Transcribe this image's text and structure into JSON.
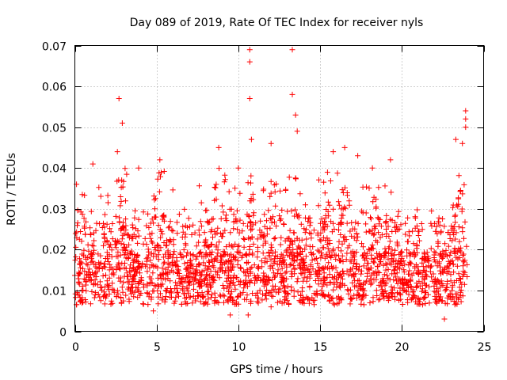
{
  "chart_data": {
    "type": "scatter",
    "title": "Day 089 of 2019, Rate Of TEC Index for receiver nyls",
    "xlabel": "GPS time / hours",
    "ylabel": "ROTI / TECUs",
    "xlim": [
      0,
      25
    ],
    "ylim": [
      0,
      0.07
    ],
    "x_ticks": [
      0,
      5,
      10,
      15,
      20,
      25
    ],
    "x_tick_labels": [
      "0",
      "5",
      "10",
      "15",
      "20",
      "25"
    ],
    "y_ticks": [
      0,
      0.01,
      0.02,
      0.03,
      0.04,
      0.05,
      0.06,
      0.07
    ],
    "y_tick_labels": [
      "0",
      "0.01",
      "0.02",
      "0.03",
      "0.04",
      "0.05",
      "0.06",
      "0.07"
    ],
    "grid": true,
    "marker": "plus",
    "marker_color": "#ff0000",
    "series": [
      {
        "name": "ROTI",
        "x_range": [
          0,
          24
        ],
        "typical_range": [
          0.005,
          0.03
        ],
        "sample_points": [
          [
            0.1,
            0.036
          ],
          [
            1.1,
            0.041
          ],
          [
            2.6,
            0.044
          ],
          [
            2.7,
            0.057
          ],
          [
            2.9,
            0.051
          ],
          [
            3.9,
            0.04
          ],
          [
            5.2,
            0.042
          ],
          [
            8.8,
            0.045
          ],
          [
            10.0,
            0.04
          ],
          [
            10.7,
            0.069
          ],
          [
            10.7,
            0.066
          ],
          [
            10.7,
            0.057
          ],
          [
            10.8,
            0.047
          ],
          [
            12.0,
            0.046
          ],
          [
            13.3,
            0.069
          ],
          [
            13.3,
            0.058
          ],
          [
            13.5,
            0.053
          ],
          [
            13.6,
            0.049
          ],
          [
            15.8,
            0.044
          ],
          [
            16.5,
            0.045
          ],
          [
            17.3,
            0.043
          ],
          [
            18.2,
            0.04
          ],
          [
            19.3,
            0.042
          ],
          [
            23.3,
            0.047
          ],
          [
            23.7,
            0.046
          ],
          [
            23.9,
            0.054
          ],
          [
            23.9,
            0.052
          ],
          [
            23.9,
            0.05
          ],
          [
            22.6,
            0.003
          ],
          [
            9.5,
            0.004
          ],
          [
            10.6,
            0.004
          ],
          [
            12.0,
            0.006
          ],
          [
            4.8,
            0.005
          ]
        ]
      }
    ]
  }
}
